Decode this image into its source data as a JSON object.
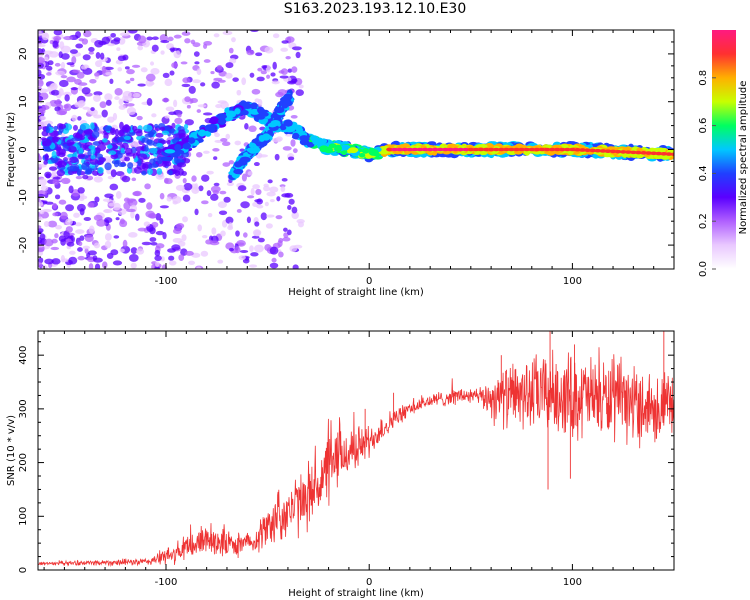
{
  "page_title": "S163.2023.193.12.10.E30",
  "chart_data": [
    {
      "type": "heatmap",
      "xlabel": "Height of straight line (km)",
      "ylabel": "Frequency (Hz)",
      "xlim": [
        -163,
        150
      ],
      "ylim": [
        -25,
        25
      ],
      "xticks": [
        -100,
        0,
        100
      ],
      "yticks": [
        -20,
        -10,
        0,
        10,
        20
      ],
      "grid": false,
      "colorbar": {
        "label": "Normalized spectral amplitude",
        "range": [
          0,
          1
        ],
        "ticks": [
          "0.0",
          "0.2",
          "0.4",
          "0.6",
          "0.8"
        ],
        "colors": [
          "#ffffff",
          "#e9c8ff",
          "#b060ff",
          "#5a00ff",
          "#2040ff",
          "#00c8ff",
          "#00ff60",
          "#c8ff00",
          "#ffb000",
          "#ff3030",
          "#ff1a80"
        ]
      },
      "ridge": [
        {
          "x": -100,
          "y": -1
        },
        {
          "x": -90,
          "y": 1
        },
        {
          "x": -80,
          "y": 4
        },
        {
          "x": -70,
          "y": 7
        },
        {
          "x": -60,
          "y": 9
        },
        {
          "x": -45,
          "y": 5
        },
        {
          "x": -40,
          "y": 5
        },
        {
          "x": -30,
          "y": 2
        },
        {
          "x": -20,
          "y": 0.5
        },
        {
          "x": -10,
          "y": 0
        },
        {
          "x": 0,
          "y": -1
        },
        {
          "x": 10,
          "y": 0
        },
        {
          "x": 50,
          "y": 0
        },
        {
          "x": 100,
          "y": 0
        },
        {
          "x": 150,
          "y": -1
        }
      ],
      "branch": [
        {
          "x": -68,
          "y": -6
        },
        {
          "x": -60,
          "y": -1
        },
        {
          "x": -50,
          "y": 3
        },
        {
          "x": -45,
          "y": 7
        },
        {
          "x": -39,
          "y": 11
        }
      ]
    },
    {
      "type": "line",
      "xlabel": "Height of straight line (km)",
      "ylabel": "SNR (10 * v/v)",
      "xlim": [
        -163,
        150
      ],
      "ylim": [
        0,
        445
      ],
      "xticks": [
        -100,
        0,
        100
      ],
      "yticks": [
        0,
        100,
        200,
        300,
        400
      ],
      "grid": false,
      "series": [
        {
          "color": "#ee3333",
          "envelope": [
            {
              "x": -163,
              "y": 12
            },
            {
              "x": -110,
              "y": 15
            },
            {
              "x": -95,
              "y": 30
            },
            {
              "x": -80,
              "y": 60
            },
            {
              "x": -65,
              "y": 45
            },
            {
              "x": -55,
              "y": 60
            },
            {
              "x": -45,
              "y": 100
            },
            {
              "x": -35,
              "y": 120
            },
            {
              "x": -25,
              "y": 160
            },
            {
              "x": -15,
              "y": 210
            },
            {
              "x": 0,
              "y": 240
            },
            {
              "x": 10,
              "y": 275
            },
            {
              "x": 20,
              "y": 300
            },
            {
              "x": 30,
              "y": 315
            },
            {
              "x": 45,
              "y": 325
            },
            {
              "x": 60,
              "y": 320
            },
            {
              "x": 70,
              "y": 325
            },
            {
              "x": 90,
              "y": 330
            },
            {
              "x": 110,
              "y": 320
            },
            {
              "x": 130,
              "y": 310
            },
            {
              "x": 150,
              "y": 300
            }
          ],
          "noise": [
            {
              "x": -163,
              "y": 4
            },
            {
              "x": -110,
              "y": 8
            },
            {
              "x": -90,
              "y": 30
            },
            {
              "x": -75,
              "y": 40
            },
            {
              "x": -60,
              "y": 20
            },
            {
              "x": -45,
              "y": 60
            },
            {
              "x": -20,
              "y": 80
            },
            {
              "x": 0,
              "y": 35
            },
            {
              "x": 20,
              "y": 15
            },
            {
              "x": 55,
              "y": 20
            },
            {
              "x": 62,
              "y": 60
            },
            {
              "x": 80,
              "y": 85
            },
            {
              "x": 100,
              "y": 95
            },
            {
              "x": 150,
              "y": 80
            }
          ],
          "spikes": [
            {
              "x": -2,
              "y": 300
            },
            {
              "x": 12,
              "y": 330
            },
            {
              "x": 65,
              "y": 400
            },
            {
              "x": 88,
              "y": 150
            },
            {
              "x": 89,
              "y": 445
            },
            {
              "x": 99,
              "y": 170
            },
            {
              "x": 101,
              "y": 420
            },
            {
              "x": 145,
              "y": 445
            }
          ]
        }
      ]
    }
  ]
}
